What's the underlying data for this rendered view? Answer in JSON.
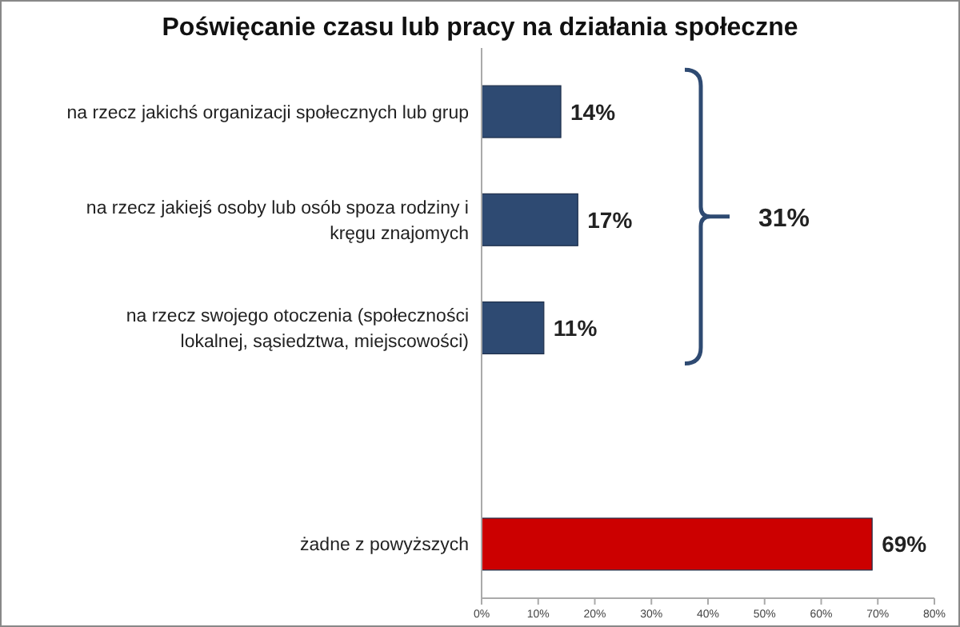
{
  "chart_data": {
    "type": "bar",
    "orientation": "horizontal",
    "title": "Poświęcanie czasu lub pracy na działania społeczne",
    "categories": [
      "na rzecz jakichś organizacji społecznych lub grup",
      "na rzecz jakiejś osoby lub osób spoza rodziny i kręgu znajomych",
      "na rzecz swojego otoczenia (społeczności lokalnej, sąsiedztwa, miejscowości)",
      null,
      "żadne z powyższych"
    ],
    "values": [
      14,
      17,
      11,
      null,
      69
    ],
    "colors": [
      "#2e4a72",
      "#2e4a72",
      "#2e4a72",
      null,
      "#cc0000"
    ],
    "value_labels": [
      "14%",
      "17%",
      "11%",
      null,
      "69%"
    ],
    "xlim": [
      0,
      80
    ],
    "xticks": [
      {
        "value": 0,
        "label": "0%"
      },
      {
        "value": 10,
        "label": "10%"
      },
      {
        "value": 20,
        "label": "20%"
      },
      {
        "value": 30,
        "label": "30%"
      },
      {
        "value": 40,
        "label": "40%"
      },
      {
        "value": 50,
        "label": "50%"
      },
      {
        "value": 60,
        "label": "60%"
      },
      {
        "value": 70,
        "label": "70%"
      },
      {
        "value": 80,
        "label": "80%"
      }
    ],
    "annotations": [
      "31%"
    ],
    "grid": false
  }
}
